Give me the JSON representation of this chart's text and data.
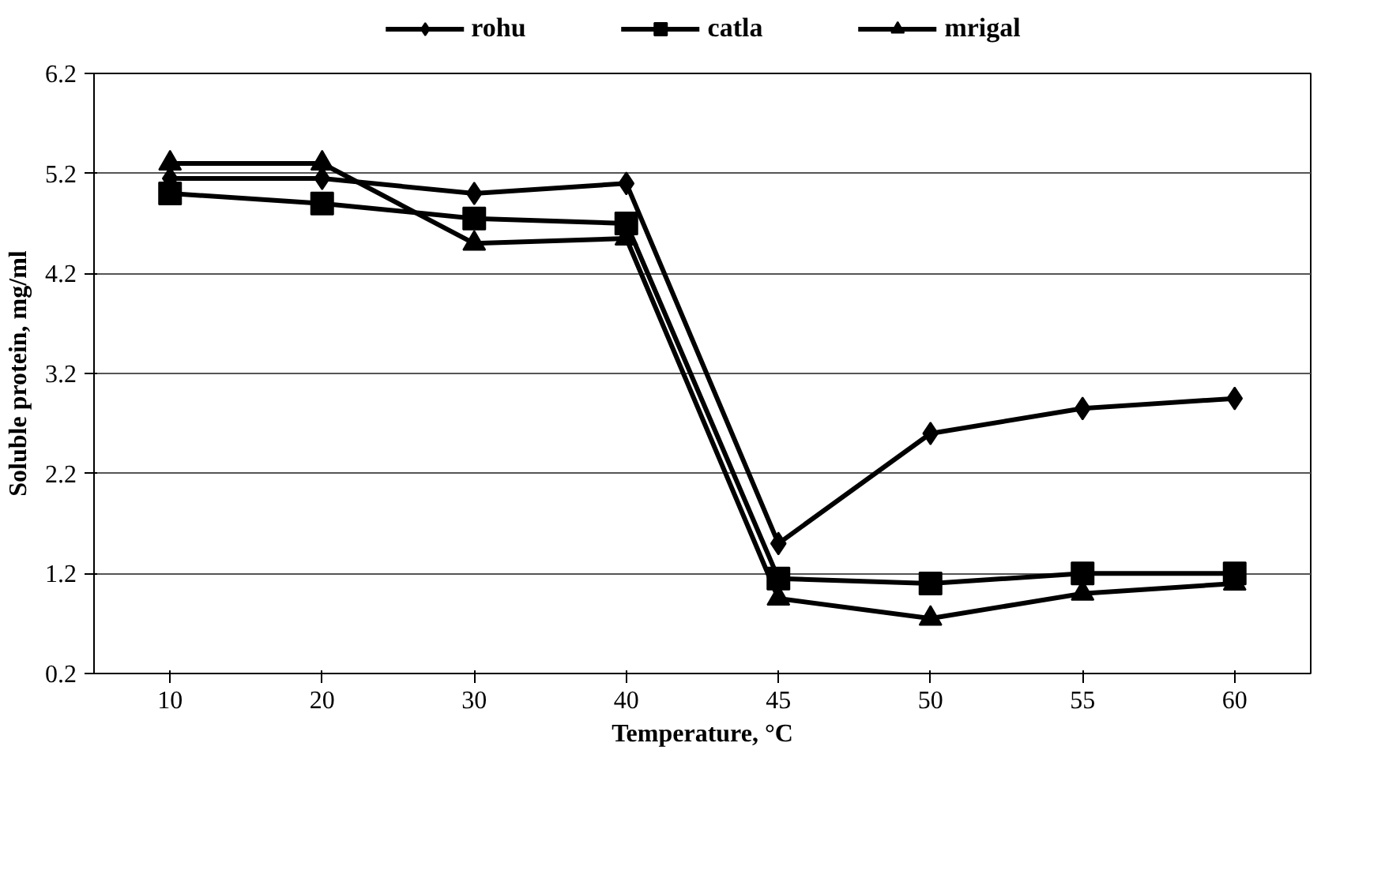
{
  "chart_data": {
    "type": "line",
    "xlabel": "Temperature, °C",
    "ylabel": "Soluble protein, mg/ml",
    "categories": [
      "10",
      "20",
      "30",
      "40",
      "45",
      "50",
      "55",
      "60"
    ],
    "series": [
      {
        "name": "rohu",
        "color": "#000000",
        "marker": "diamond",
        "values": [
          5.15,
          5.15,
          5.0,
          5.1,
          1.5,
          2.6,
          2.85,
          2.95
        ]
      },
      {
        "name": "catla",
        "color": "#000000",
        "marker": "square",
        "values": [
          5.0,
          4.9,
          4.75,
          4.7,
          1.15,
          1.1,
          1.2,
          1.2
        ]
      },
      {
        "name": "mrigal",
        "color": "#000000",
        "marker": "triangle",
        "values": [
          5.3,
          5.3,
          4.5,
          4.55,
          0.95,
          0.75,
          1.0,
          1.1
        ]
      }
    ],
    "ylim": [
      0.2,
      6.2
    ],
    "yticks": [
      0.2,
      1.2,
      2.2,
      3.2,
      4.2,
      5.2,
      6.2
    ],
    "grid": "y",
    "legend": "top"
  }
}
